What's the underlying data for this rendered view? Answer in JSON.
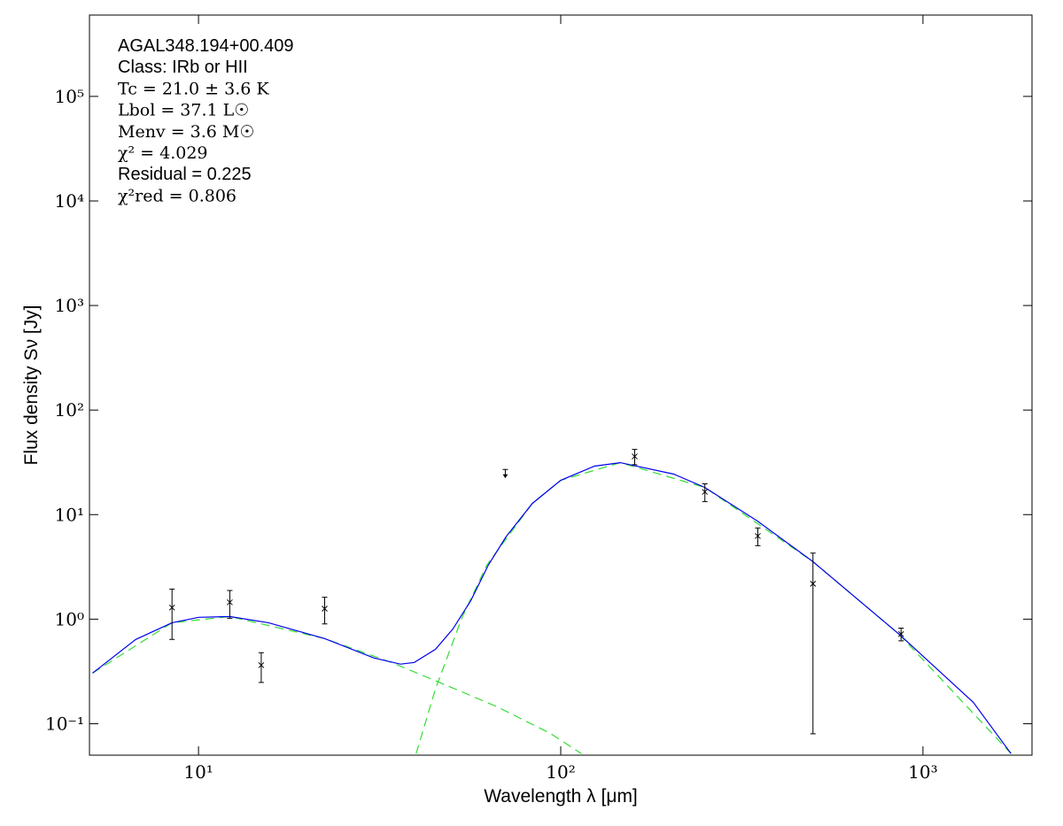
{
  "chart_data": {
    "type": "sed",
    "xlabel": "Wavelength λ [μm]",
    "ylabel": "Flux density Sν [Jy]",
    "log_x": true,
    "log_y": true,
    "xlim": [
      5,
      2000
    ],
    "ylim": [
      0.05,
      600000
    ],
    "xticks": [
      {
        "value": 10,
        "label": "10¹"
      },
      {
        "value": 100,
        "label": "10²"
      },
      {
        "value": 1000,
        "label": "10³"
      }
    ],
    "yticks": [
      {
        "value": 0.1,
        "label": "10⁻¹"
      },
      {
        "value": 1,
        "label": "10⁰"
      },
      {
        "value": 10,
        "label": "10¹"
      },
      {
        "value": 100,
        "label": "10²"
      },
      {
        "value": 1000,
        "label": "10³"
      },
      {
        "value": 10000,
        "label": "10⁴"
      },
      {
        "value": 100000,
        "label": "10⁵"
      }
    ],
    "annotations": [
      "AGAL348.194+00.409",
      "Class: IRb or HII",
      "Tc = 21.0 ± 3.6 K",
      "Lbol = 37.1 L☉",
      "Menv = 3.6 M☉",
      "χ² = 4.029",
      "Residual = 0.225",
      "χ²red = 0.806"
    ],
    "points": {
      "color": "#000000",
      "x": [
        8.45,
        12.2,
        14.9,
        22.3,
        160,
        250,
        350,
        497,
        870
      ],
      "y": [
        1.29,
        1.45,
        0.363,
        1.26,
        36,
        16.5,
        6.24,
        2.18,
        0.72
      ],
      "yerr": [
        0.65,
        0.43,
        0.115,
        0.36,
        6,
        3.2,
        1.2,
        2.1,
        0.1
      ]
    },
    "upper_limits": {
      "color": "#000000",
      "x": [
        70.3
      ],
      "y": [
        25
      ]
    },
    "curves": [
      {
        "color": "#33dd33",
        "dashed": true,
        "x": [
          5.1,
          8.45,
          12.2,
          22.3,
          34.1,
          47.8,
          66.8,
          93.5,
          114
        ],
        "y": [
          0.305,
          0.925,
          1.06,
          0.652,
          0.385,
          0.237,
          0.145,
          0.081,
          0.0518
        ]
      },
      {
        "color": "#33dd33",
        "dashed": true,
        "x": [
          39.9,
          45.1,
          53.3,
          62.5,
          83.5,
          100,
          146,
          250,
          497,
          859,
          1750
        ],
        "y": [
          0.0518,
          0.215,
          1.02,
          3.28,
          12.8,
          21.3,
          31.4,
          18.2,
          3.55,
          0.718,
          0.0518
        ]
      },
      {
        "color": "#0000ee",
        "dashed": false,
        "x": [
          5.1,
          6.71,
          8.45,
          10,
          12.2,
          15.6,
          22.3,
          30.5,
          36.1,
          39.4,
          45.1,
          50.4,
          56.5,
          63.1,
          70.6,
          83.5,
          100,
          124,
          146,
          205,
          250,
          349,
          497,
          859,
          1377,
          1750
        ],
        "y": [
          0.305,
          0.639,
          0.925,
          1.04,
          1.06,
          0.925,
          0.652,
          0.425,
          0.371,
          0.385,
          0.515,
          0.807,
          1.51,
          3.28,
          6.12,
          12.8,
          21.3,
          29.1,
          31.4,
          24.4,
          18.2,
          8.69,
          3.55,
          0.718,
          0.16,
          0.0518
        ]
      }
    ]
  }
}
